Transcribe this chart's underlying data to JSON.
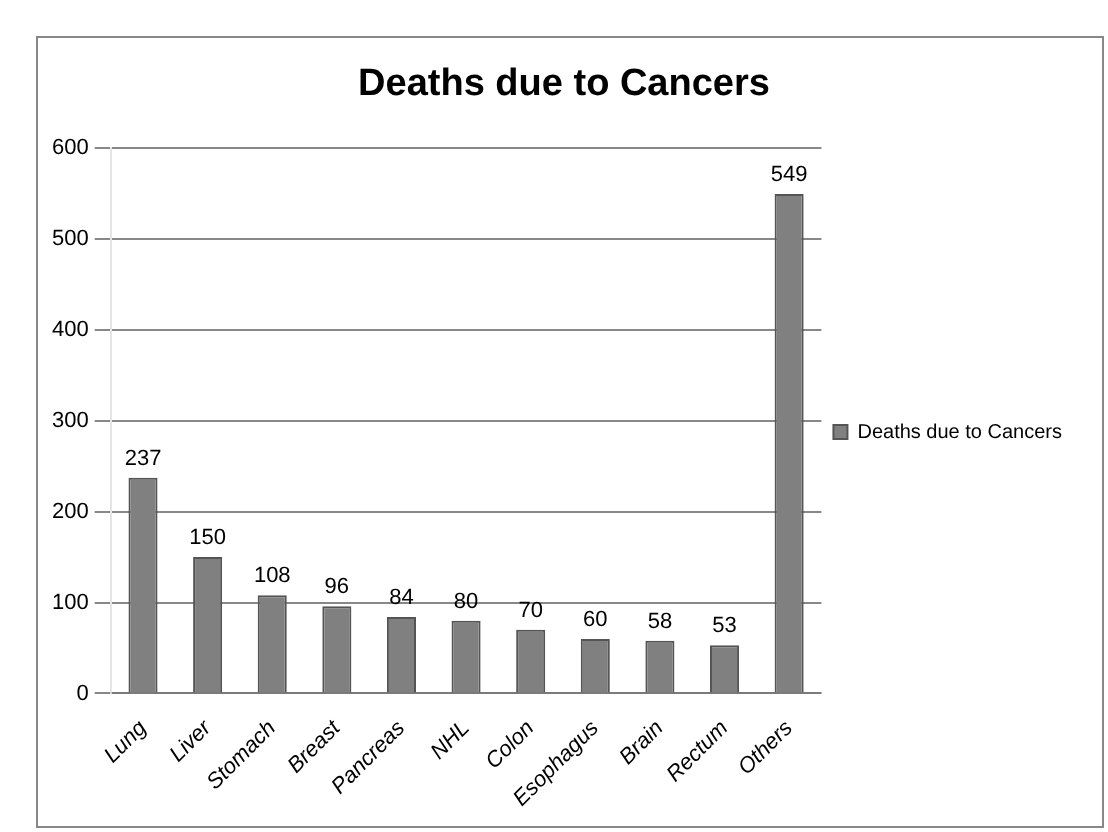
{
  "chart_data": {
    "type": "bar",
    "title": "Deaths due to Cancers",
    "categories": [
      "Lung",
      "Liver",
      "Stomach",
      "Breast",
      "Pancreas",
      "NHL",
      "Colon",
      "Esophagus",
      "Brain",
      "Rectum",
      "Others"
    ],
    "series": [
      {
        "name": "Deaths due to Cancers",
        "color": "#808080",
        "values": [
          237,
          150,
          108,
          96,
          84,
          80,
          70,
          60,
          58,
          53,
          549
        ]
      }
    ],
    "ylim": [
      0,
      600
    ],
    "yticks": [
      0,
      100,
      200,
      300,
      400,
      500,
      600
    ],
    "grid": "y",
    "legend": "right",
    "data_labels": true
  }
}
